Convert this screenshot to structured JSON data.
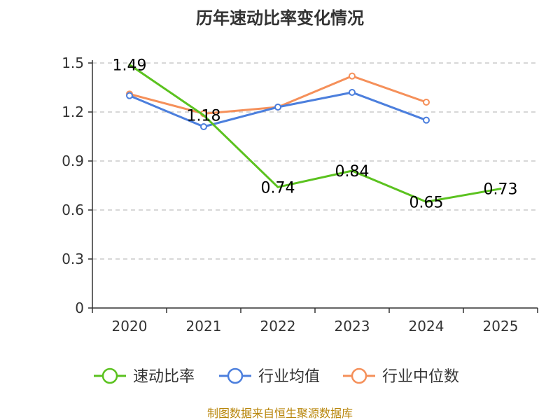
{
  "colors": {
    "speed_ratio": "#5bc21f",
    "industry_avg": "#4c7fdd",
    "industry_median": "#f5905a",
    "grid": "#cccccc",
    "axis": "#333333",
    "source": "#b8860b"
  },
  "chart_data": {
    "type": "line",
    "title": "历年速动比率变化情况",
    "categories": [
      "2020",
      "2021",
      "2022",
      "2023",
      "2024",
      "2025"
    ],
    "yticks": [
      "0",
      "0.3",
      "0.6",
      "0.9",
      "1.2",
      "1.5"
    ],
    "ylim": [
      0,
      1.5
    ],
    "series": [
      {
        "name": "速动比率",
        "color_key": "speed_ratio",
        "values": [
          1.49,
          1.18,
          0.74,
          0.84,
          0.65,
          0.73
        ],
        "labels": [
          "1.49",
          "1.18",
          "0.74",
          "0.84",
          "0.65",
          "0.73"
        ],
        "show_labels": true,
        "markers": false
      },
      {
        "name": "行业均值",
        "color_key": "industry_avg",
        "values": [
          1.3,
          1.11,
          1.23,
          1.32,
          1.15,
          null
        ],
        "show_labels": false,
        "markers": true
      },
      {
        "name": "行业中位数",
        "color_key": "industry_median",
        "values": [
          1.31,
          1.19,
          1.23,
          1.42,
          1.26,
          null
        ],
        "show_labels": false,
        "markers": true
      }
    ],
    "legend": [
      "速动比率",
      "行业均值",
      "行业中位数"
    ],
    "legend_position": "bottom",
    "grid": true
  },
  "source_text": "制图数据来自恒生聚源数据库"
}
